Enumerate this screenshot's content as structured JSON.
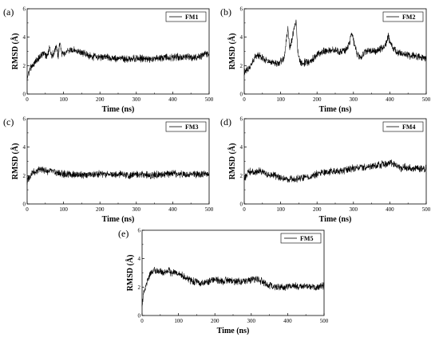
{
  "chart_data": [
    {
      "type": "line",
      "panel_label": "(a)",
      "xlabel": "Time (ns)",
      "ylabel": "RMSD (Å)",
      "xlim": [
        0,
        500
      ],
      "ylim": [
        0,
        6
      ],
      "xticks": [
        0,
        100,
        200,
        300,
        400,
        500
      ],
      "yticks": [
        0,
        2,
        4,
        6
      ],
      "legend": "top-right",
      "grid": false,
      "series": [
        {
          "name": "FM1",
          "x": [
            0,
            3,
            8,
            15,
            25,
            35,
            45,
            55,
            62,
            68,
            75,
            80,
            85,
            90,
            95,
            100,
            110,
            120,
            130,
            140,
            150,
            160,
            170,
            180,
            200,
            220,
            240,
            260,
            280,
            300,
            320,
            340,
            360,
            380,
            400,
            420,
            440,
            460,
            480,
            490,
            500
          ],
          "y": [
            1.0,
            1.4,
            1.8,
            2.0,
            2.3,
            2.6,
            2.9,
            2.6,
            3.2,
            2.7,
            2.9,
            3.5,
            2.6,
            3.7,
            2.8,
            2.8,
            3.0,
            3.1,
            3.1,
            3.0,
            2.9,
            2.8,
            2.7,
            2.6,
            2.6,
            2.6,
            2.5,
            2.5,
            2.4,
            2.5,
            2.5,
            2.4,
            2.5,
            2.6,
            2.6,
            2.6,
            2.6,
            2.6,
            2.7,
            2.8,
            2.8
          ]
        }
      ]
    },
    {
      "type": "line",
      "panel_label": "(b)",
      "xlabel": "Time (ns)",
      "ylabel": "RMSD (Å)",
      "xlim": [
        0,
        500
      ],
      "ylim": [
        0,
        6
      ],
      "xticks": [
        0,
        100,
        200,
        300,
        400,
        500
      ],
      "yticks": [
        0,
        2,
        4,
        6
      ],
      "legend": "top-right",
      "grid": false,
      "series": [
        {
          "name": "FM2",
          "x": [
            0,
            10,
            20,
            30,
            40,
            50,
            60,
            70,
            80,
            90,
            100,
            110,
            115,
            120,
            125,
            130,
            135,
            140,
            143,
            146,
            150,
            155,
            160,
            170,
            180,
            190,
            200,
            220,
            240,
            260,
            280,
            290,
            295,
            300,
            305,
            310,
            320,
            330,
            340,
            360,
            380,
            390,
            395,
            400,
            410,
            420,
            440,
            460,
            480,
            500
          ],
          "y": [
            1.5,
            1.7,
            2.1,
            2.6,
            2.7,
            2.5,
            2.4,
            2.3,
            2.2,
            2.1,
            2.3,
            2.5,
            3.6,
            4.6,
            3.2,
            3.8,
            4.3,
            4.9,
            5.2,
            3.2,
            2.5,
            2.2,
            2.1,
            2.3,
            2.2,
            2.5,
            2.8,
            3.0,
            3.1,
            3.0,
            3.1,
            3.7,
            4.3,
            3.8,
            3.2,
            2.8,
            2.5,
            2.9,
            3.1,
            3.0,
            3.2,
            3.6,
            4.1,
            3.7,
            3.2,
            2.9,
            2.8,
            2.7,
            2.6,
            2.5
          ]
        }
      ]
    },
    {
      "type": "line",
      "panel_label": "(c)",
      "xlabel": "Time (ns)",
      "ylabel": "RMSD (Å)",
      "xlim": [
        0,
        500
      ],
      "ylim": [
        0,
        6
      ],
      "xticks": [
        0,
        100,
        200,
        300,
        400,
        500
      ],
      "yticks": [
        0,
        2,
        4,
        6
      ],
      "legend": "top-right",
      "grid": false,
      "series": [
        {
          "name": "FM3",
          "x": [
            0,
            3,
            8,
            15,
            25,
            35,
            45,
            55,
            65,
            80,
            100,
            120,
            140,
            160,
            180,
            200,
            220,
            240,
            260,
            280,
            300,
            320,
            340,
            360,
            380,
            400,
            420,
            440,
            460,
            480,
            500
          ],
          "y": [
            1.5,
            1.8,
            2.0,
            2.2,
            2.3,
            2.4,
            2.4,
            2.3,
            2.3,
            2.2,
            2.1,
            2.1,
            2.1,
            2.0,
            2.1,
            2.1,
            2.1,
            2.1,
            2.1,
            2.0,
            2.1,
            2.1,
            2.0,
            2.1,
            2.1,
            2.1,
            2.1,
            2.1,
            2.1,
            2.1,
            2.1
          ]
        }
      ]
    },
    {
      "type": "line",
      "panel_label": "(d)",
      "xlabel": "Time (ns)",
      "ylabel": "RMSD (Å)",
      "xlim": [
        0,
        500
      ],
      "ylim": [
        0,
        6
      ],
      "xticks": [
        0,
        100,
        200,
        300,
        400,
        500
      ],
      "yticks": [
        0,
        2,
        4,
        6
      ],
      "legend": "top-right",
      "grid": false,
      "series": [
        {
          "name": "FM4",
          "x": [
            0,
            10,
            20,
            30,
            40,
            50,
            60,
            70,
            80,
            90,
            100,
            110,
            120,
            130,
            140,
            150,
            160,
            170,
            180,
            190,
            200,
            220,
            240,
            260,
            280,
            300,
            320,
            340,
            360,
            380,
            390,
            400,
            410,
            420,
            430,
            440,
            460,
            480,
            500
          ],
          "y": [
            1.8,
            2.2,
            2.3,
            2.2,
            2.4,
            2.3,
            2.1,
            2.0,
            2.1,
            1.9,
            1.8,
            1.8,
            1.7,
            1.8,
            1.7,
            1.8,
            1.8,
            2.0,
            1.9,
            2.0,
            2.1,
            2.2,
            2.3,
            2.3,
            2.4,
            2.5,
            2.6,
            2.6,
            2.7,
            2.8,
            2.8,
            2.9,
            2.8,
            2.7,
            2.5,
            2.6,
            2.5,
            2.5,
            2.5
          ]
        }
      ]
    },
    {
      "type": "line",
      "panel_label": "(e)",
      "xlabel": "Time (ns)",
      "ylabel": "RMSD (Å)",
      "xlim": [
        0,
        500
      ],
      "ylim": [
        0,
        6
      ],
      "xticks": [
        0,
        100,
        200,
        300,
        400,
        500
      ],
      "yticks": [
        0,
        2,
        4,
        6
      ],
      "legend": "top-right",
      "grid": false,
      "series": [
        {
          "name": "FM5",
          "x": [
            0,
            3,
            8,
            15,
            20,
            25,
            30,
            40,
            50,
            60,
            70,
            80,
            90,
            100,
            110,
            120,
            130,
            140,
            150,
            160,
            180,
            200,
            220,
            240,
            260,
            280,
            300,
            310,
            320,
            330,
            340,
            350,
            360,
            380,
            400,
            420,
            440,
            460,
            480,
            500
          ],
          "y": [
            0.8,
            1.4,
            1.8,
            2.4,
            2.8,
            3.0,
            3.2,
            3.1,
            3.1,
            3.0,
            3.2,
            3.0,
            3.1,
            2.9,
            2.8,
            2.6,
            2.5,
            2.4,
            2.4,
            2.3,
            2.4,
            2.5,
            2.4,
            2.5,
            2.4,
            2.4,
            2.5,
            2.6,
            2.5,
            2.4,
            2.2,
            2.1,
            2.0,
            2.0,
            2.0,
            2.1,
            2.0,
            2.0,
            2.0,
            2.1
          ]
        }
      ]
    }
  ]
}
